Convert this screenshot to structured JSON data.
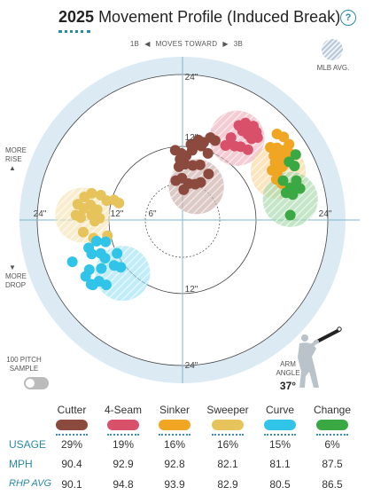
{
  "header": {
    "year": "2025",
    "title": "Movement Profile (Induced Break)",
    "help": "?",
    "direction_left": "1B",
    "direction_middle": "MOVES TOWARD",
    "direction_right": "3B",
    "mlb_avg_label": "MLB AVG.",
    "more_rise": [
      "MORE",
      "RISE"
    ],
    "more_drop": [
      "MORE",
      "DROP"
    ],
    "sample_label": [
      "100 PITCH",
      "SAMPLE"
    ],
    "arm_angle_label": [
      "ARM",
      "ANGLE"
    ],
    "arm_angle_value": "37°"
  },
  "chart_data": {
    "type": "scatter",
    "x_unit": "inches horizontal break",
    "y_unit": "inches induced vertical break",
    "rings": [
      6,
      12,
      24
    ],
    "ring_labels": [
      "24\"",
      "12\"",
      "6\"",
      "12\"",
      "24\"",
      "24\"",
      "12\"",
      "24\""
    ],
    "series": [
      {
        "name": "Cutter",
        "color": "#8c4a3e",
        "avg": [
          2.3,
          5.5
        ],
        "points": [
          [
            -1.2,
            11.5
          ],
          [
            -0.2,
            11.0
          ],
          [
            0.6,
            10.6
          ],
          [
            1.6,
            11.5
          ],
          [
            2.2,
            12.4
          ],
          [
            3.1,
            12.2
          ],
          [
            -0.6,
            8.8
          ],
          [
            0.4,
            9.2
          ],
          [
            1.7,
            9.0
          ],
          [
            2.9,
            9.1
          ],
          [
            -1.1,
            6.5
          ],
          [
            -0.1,
            6.9
          ],
          [
            1.0,
            6.0
          ],
          [
            2.1,
            5.9
          ],
          [
            3.0,
            6.2
          ],
          [
            4.3,
            7.6
          ],
          [
            1.4,
            12.5
          ],
          [
            2.6,
            13.2
          ],
          [
            3.5,
            12.8
          ],
          [
            4.6,
            13.6
          ],
          [
            5.4,
            13.1
          ],
          [
            4.2,
            11.0
          ],
          [
            0.2,
            5.0
          ],
          [
            -0.4,
            10.0
          ]
        ]
      },
      {
        "name": "4-Seam",
        "color": "#d9506a",
        "avg": [
          9.0,
          13.5
        ],
        "points": [
          [
            9.3,
            15.6
          ],
          [
            10.4,
            16.0
          ],
          [
            11.0,
            14.8
          ],
          [
            12.2,
            14.5
          ],
          [
            12.4,
            13.6
          ],
          [
            10.8,
            14.1
          ],
          [
            9.9,
            14.7
          ],
          [
            11.7,
            15.5
          ],
          [
            8.0,
            13.6
          ],
          [
            7.1,
            12.3
          ],
          [
            8.6,
            12.2
          ],
          [
            9.6,
            12.1
          ],
          [
            10.8,
            11.6
          ],
          [
            11.4,
            13.4
          ]
        ]
      },
      {
        "name": "Sinker",
        "color": "#f0a623",
        "avg": [
          15.8,
          8.0
        ],
        "points": [
          [
            15.6,
            14.2
          ],
          [
            16.7,
            13.7
          ],
          [
            17.6,
            12.5
          ],
          [
            15.6,
            11.9
          ],
          [
            16.9,
            11.5
          ],
          [
            15.1,
            10.6
          ],
          [
            16.1,
            10.4
          ],
          [
            17.2,
            10.2
          ],
          [
            15.3,
            9.5
          ],
          [
            17.8,
            10.9
          ],
          [
            14.8,
            8.2
          ],
          [
            15.7,
            8.0
          ],
          [
            16.5,
            8.8
          ],
          [
            15.5,
            6.7
          ],
          [
            16.4,
            6.0
          ],
          [
            14.5,
            12.0
          ]
        ]
      },
      {
        "name": "Sweeper",
        "color": "#e6c45b",
        "avg": [
          -16.5,
          0.8
        ],
        "points": [
          [
            -15.0,
            4.4
          ],
          [
            -16.2,
            3.8
          ],
          [
            -13.5,
            4.1
          ],
          [
            -17.3,
            2.6
          ],
          [
            -15.2,
            2.5
          ],
          [
            -16.3,
            1.9
          ],
          [
            -14.1,
            1.7
          ],
          [
            -12.5,
            3.2
          ],
          [
            -11.3,
            3.3
          ],
          [
            -10.5,
            2.8
          ],
          [
            -17.6,
            0.8
          ],
          [
            -15.0,
            0.8
          ],
          [
            -16.8,
            0.4
          ],
          [
            -14.5,
            -0.2
          ],
          [
            -13.7,
            0.3
          ],
          [
            -14.7,
            -3.0
          ],
          [
            -12.4,
            -2.6
          ],
          [
            -16.4,
            -2.0
          ]
        ]
      },
      {
        "name": "Curve",
        "color": "#2fc4e8",
        "avg": [
          -9.9,
          -8.8
        ],
        "points": [
          [
            -14.2,
            -3.5
          ],
          [
            -12.7,
            -3.6
          ],
          [
            -15.5,
            -4.6
          ],
          [
            -15.0,
            -5.6
          ],
          [
            -13.5,
            -5.5
          ],
          [
            -12.8,
            -6.3
          ],
          [
            -10.8,
            -5.5
          ],
          [
            -11.3,
            -7.5
          ],
          [
            -10.2,
            -7.8
          ],
          [
            -18.2,
            -6.9
          ],
          [
            -15.4,
            -8.2
          ],
          [
            -13.4,
            -8.0
          ],
          [
            -16.0,
            -9.3
          ],
          [
            -13.8,
            -10.1
          ],
          [
            -14.8,
            -10.7
          ],
          [
            -12.6,
            -10.7
          ],
          [
            -15.1,
            -10.6
          ]
        ]
      },
      {
        "name": "Change",
        "color": "#3aa843",
        "avg": [
          17.8,
          3.4
        ],
        "points": [
          [
            18.7,
            10.8
          ],
          [
            17.6,
            9.6
          ],
          [
            18.5,
            8.9
          ],
          [
            18.8,
            6.5
          ],
          [
            16.6,
            6.5
          ],
          [
            17.8,
            5.3
          ],
          [
            18.6,
            5.2
          ],
          [
            19.4,
            5.2
          ],
          [
            18.2,
            4.2
          ],
          [
            17.1,
            4.5
          ],
          [
            17.8,
            0.8
          ]
        ]
      }
    ]
  },
  "table": {
    "pitches": [
      "Cutter",
      "4-Seam",
      "Sinker",
      "Sweeper",
      "Curve",
      "Change"
    ],
    "colors": [
      "#8c4a3e",
      "#d9506a",
      "#f0a623",
      "#e6c45b",
      "#2fc4e8",
      "#3aa843"
    ],
    "row_labels": [
      "USAGE",
      "MPH",
      "RHP AVG"
    ],
    "usage": [
      "29%",
      "19%",
      "16%",
      "16%",
      "15%",
      "6%"
    ],
    "mph": [
      "90.4",
      "92.9",
      "92.8",
      "82.1",
      "81.1",
      "87.5"
    ],
    "rhp_avg": [
      "90.1",
      "94.8",
      "93.9",
      "82.9",
      "80.5",
      "86.5"
    ]
  }
}
